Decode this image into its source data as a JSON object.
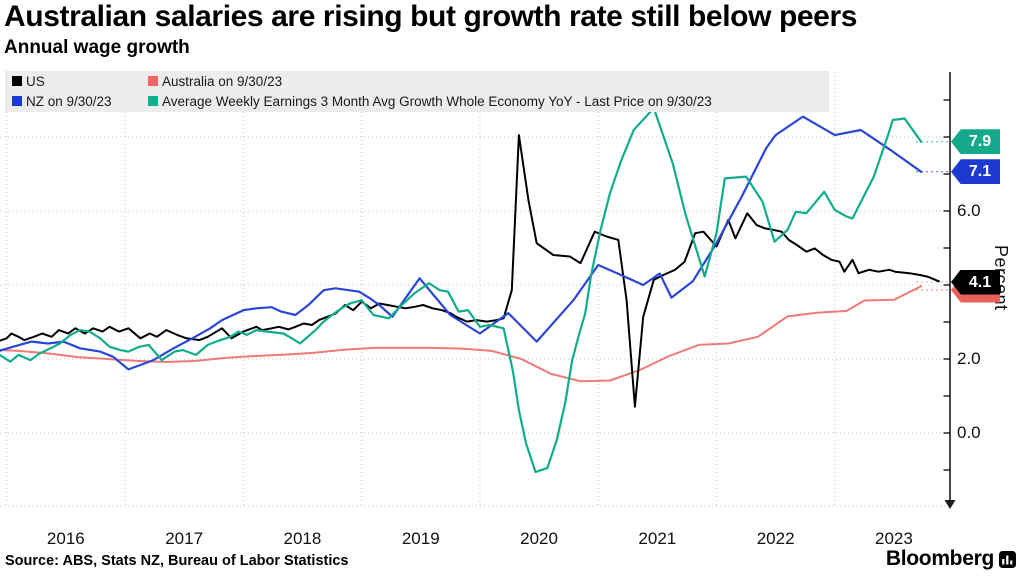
{
  "header": {
    "title": "Australian salaries are rising but growth rate still below peers",
    "subtitle": "Annual wage growth"
  },
  "legend": {
    "items": [
      {
        "label": "US",
        "color": "#000000"
      },
      {
        "label": "Australia on 9/30/23",
        "color": "#ee6562"
      },
      {
        "label": "NZ on 9/30/23",
        "color": "#1c3ad2"
      },
      {
        "label": "Average Weekly Earnings 3 Month Avg Growth Whole Economy YoY - Last Price on 9/30/23",
        "color": "#0cb08a"
      }
    ]
  },
  "chart_data": {
    "type": "line",
    "title": "Annual wage growth",
    "ylabel": "Percent",
    "ylim": [
      -1.97,
      9.76
    ],
    "xlim": [
      2015.94,
      2023.98
    ],
    "grid": "dotted",
    "legend_position": "top-left",
    "y_major_gridlines": [
      0,
      2,
      4,
      6,
      8
    ],
    "y_axis_labels": [
      {
        "v": 0,
        "label": "0.0"
      },
      {
        "v": 2,
        "label": "2.0"
      },
      {
        "v": 6,
        "label": "6.0"
      }
    ],
    "y_minor_ticks": [
      -1,
      0,
      1,
      2,
      3,
      4,
      5,
      6,
      7,
      8,
      9
    ],
    "x_ticks": [
      {
        "year": 2016,
        "label": "2016"
      },
      {
        "year": 2017,
        "label": "2017"
      },
      {
        "year": 2018,
        "label": "2018"
      },
      {
        "year": 2019,
        "label": "2019"
      },
      {
        "year": 2020,
        "label": "2020"
      },
      {
        "year": 2021,
        "label": "2021"
      },
      {
        "year": 2022,
        "label": "2022"
      },
      {
        "year": 2023,
        "label": "2023"
      }
    ],
    "last_price_labels": [
      {
        "label": "7.9",
        "v": 7.87,
        "color": "#14a98a",
        "offset": 0
      },
      {
        "label": "7.1",
        "v": 7.06,
        "color": "#1c3ad2",
        "offset": 0
      },
      {
        "label": "",
        "v": 4.08,
        "color": "#e8625a",
        "offset": 8
      },
      {
        "label": "4.1",
        "v": 4.08,
        "color": "#000000",
        "offset": 0
      }
    ],
    "series": [
      {
        "name": "Australia on 9/30/23",
        "color": "#ef7b79",
        "width": 2,
        "points": [
          [
            2015.92,
            2.25
          ],
          [
            2016.1,
            2.22
          ],
          [
            2016.35,
            2.15
          ],
          [
            2016.6,
            2.05
          ],
          [
            2016.85,
            2.0
          ],
          [
            2017.1,
            1.95
          ],
          [
            2017.35,
            1.92
          ],
          [
            2017.6,
            1.95
          ],
          [
            2017.85,
            2.03
          ],
          [
            2018.1,
            2.08
          ],
          [
            2018.35,
            2.12
          ],
          [
            2018.6,
            2.17
          ],
          [
            2018.85,
            2.25
          ],
          [
            2019.1,
            2.3
          ],
          [
            2019.35,
            2.3
          ],
          [
            2019.6,
            2.3
          ],
          [
            2019.85,
            2.28
          ],
          [
            2020.1,
            2.22
          ],
          [
            2020.35,
            2.0
          ],
          [
            2020.6,
            1.6
          ],
          [
            2020.85,
            1.4
          ],
          [
            2021.1,
            1.42
          ],
          [
            2021.35,
            1.7
          ],
          [
            2021.6,
            2.08
          ],
          [
            2021.85,
            2.38
          ],
          [
            2022.1,
            2.42
          ],
          [
            2022.35,
            2.6
          ],
          [
            2022.6,
            3.15
          ],
          [
            2022.85,
            3.25
          ],
          [
            2023.1,
            3.3
          ],
          [
            2023.25,
            3.58
          ],
          [
            2023.5,
            3.6
          ],
          [
            2023.73,
            3.97
          ]
        ]
      },
      {
        "name": "US",
        "color": "#000000",
        "width": 2,
        "points": [
          [
            2015.92,
            2.47
          ],
          [
            2016.0,
            2.56
          ],
          [
            2016.04,
            2.69
          ],
          [
            2016.1,
            2.6
          ],
          [
            2016.15,
            2.51
          ],
          [
            2016.23,
            2.6
          ],
          [
            2016.3,
            2.69
          ],
          [
            2016.38,
            2.6
          ],
          [
            2016.44,
            2.78
          ],
          [
            2016.52,
            2.69
          ],
          [
            2016.58,
            2.83
          ],
          [
            2016.66,
            2.69
          ],
          [
            2016.73,
            2.83
          ],
          [
            2016.81,
            2.74
          ],
          [
            2016.87,
            2.87
          ],
          [
            2016.95,
            2.74
          ],
          [
            2017.03,
            2.83
          ],
          [
            2017.13,
            2.56
          ],
          [
            2017.21,
            2.69
          ],
          [
            2017.27,
            2.6
          ],
          [
            2017.35,
            2.78
          ],
          [
            2017.44,
            2.65
          ],
          [
            2017.52,
            2.56
          ],
          [
            2017.63,
            2.51
          ],
          [
            2017.7,
            2.6
          ],
          [
            2017.82,
            2.83
          ],
          [
            2017.9,
            2.56
          ],
          [
            2018.0,
            2.74
          ],
          [
            2018.11,
            2.87
          ],
          [
            2018.16,
            2.78
          ],
          [
            2018.24,
            2.83
          ],
          [
            2018.3,
            2.87
          ],
          [
            2018.38,
            2.8
          ],
          [
            2018.44,
            2.87
          ],
          [
            2018.51,
            2.96
          ],
          [
            2018.58,
            2.92
          ],
          [
            2018.64,
            3.05
          ],
          [
            2018.71,
            3.14
          ],
          [
            2018.78,
            3.23
          ],
          [
            2018.86,
            3.46
          ],
          [
            2018.93,
            3.32
          ],
          [
            2019.0,
            3.55
          ],
          [
            2019.08,
            3.37
          ],
          [
            2019.15,
            3.5
          ],
          [
            2019.22,
            3.46
          ],
          [
            2019.3,
            3.41
          ],
          [
            2019.37,
            3.37
          ],
          [
            2019.45,
            3.41
          ],
          [
            2019.52,
            3.46
          ],
          [
            2019.6,
            3.37
          ],
          [
            2019.68,
            3.32
          ],
          [
            2019.75,
            3.24
          ],
          [
            2019.8,
            3.14
          ],
          [
            2019.89,
            3.01
          ],
          [
            2019.97,
            3.05
          ],
          [
            2020.06,
            3.01
          ],
          [
            2020.14,
            3.05
          ],
          [
            2020.2,
            3.1
          ],
          [
            2020.27,
            3.86
          ],
          [
            2020.33,
            8.05
          ],
          [
            2020.41,
            6.3
          ],
          [
            2020.48,
            5.13
          ],
          [
            2020.62,
            4.81
          ],
          [
            2020.76,
            4.77
          ],
          [
            2020.85,
            4.59
          ],
          [
            2020.97,
            5.44
          ],
          [
            2021.07,
            5.31
          ],
          [
            2021.17,
            5.22
          ],
          [
            2021.24,
            3.59
          ],
          [
            2021.31,
            0.71
          ],
          [
            2021.38,
            3.14
          ],
          [
            2021.47,
            4.14
          ],
          [
            2021.55,
            4.27
          ],
          [
            2021.65,
            4.41
          ],
          [
            2021.73,
            4.63
          ],
          [
            2021.82,
            5.4
          ],
          [
            2021.89,
            5.44
          ],
          [
            2022.0,
            5.04
          ],
          [
            2022.1,
            5.76
          ],
          [
            2022.16,
            5.26
          ],
          [
            2022.26,
            5.94
          ],
          [
            2022.34,
            5.62
          ],
          [
            2022.41,
            5.53
          ],
          [
            2022.48,
            5.49
          ],
          [
            2022.55,
            5.44
          ],
          [
            2022.61,
            5.22
          ],
          [
            2022.68,
            5.08
          ],
          [
            2022.76,
            4.9
          ],
          [
            2022.83,
            4.99
          ],
          [
            2022.9,
            4.81
          ],
          [
            2022.97,
            4.68
          ],
          [
            2023.04,
            4.63
          ],
          [
            2023.08,
            4.36
          ],
          [
            2023.15,
            4.68
          ],
          [
            2023.2,
            4.32
          ],
          [
            2023.29,
            4.41
          ],
          [
            2023.37,
            4.36
          ],
          [
            2023.46,
            4.41
          ],
          [
            2023.51,
            4.36
          ],
          [
            2023.63,
            4.32
          ],
          [
            2023.72,
            4.27
          ],
          [
            2023.79,
            4.22
          ],
          [
            2023.88,
            4.1
          ]
        ]
      },
      {
        "name": "NZ on 9/30/23",
        "color": "#2946d6",
        "width": 2.2,
        "points": [
          [
            2015.92,
            2.2
          ],
          [
            2016.0,
            2.28
          ],
          [
            2016.21,
            2.47
          ],
          [
            2016.35,
            2.42
          ],
          [
            2016.48,
            2.47
          ],
          [
            2016.62,
            2.29
          ],
          [
            2016.79,
            2.2
          ],
          [
            2016.9,
            2.06
          ],
          [
            2017.03,
            1.72
          ],
          [
            2017.24,
            1.97
          ],
          [
            2017.41,
            2.29
          ],
          [
            2017.57,
            2.56
          ],
          [
            2017.72,
            2.83
          ],
          [
            2017.82,
            3.05
          ],
          [
            2018.0,
            3.32
          ],
          [
            2018.11,
            3.37
          ],
          [
            2018.24,
            3.4
          ],
          [
            2018.32,
            3.28
          ],
          [
            2018.44,
            3.19
          ],
          [
            2018.55,
            3.46
          ],
          [
            2018.68,
            3.86
          ],
          [
            2018.78,
            3.91
          ],
          [
            2018.98,
            3.82
          ],
          [
            2019.07,
            3.64
          ],
          [
            2019.15,
            3.46
          ],
          [
            2019.26,
            3.14
          ],
          [
            2019.49,
            4.18
          ],
          [
            2019.75,
            3.19
          ],
          [
            2020.0,
            2.69
          ],
          [
            2020.24,
            3.24
          ],
          [
            2020.48,
            2.47
          ],
          [
            2020.79,
            3.59
          ],
          [
            2020.93,
            4.22
          ],
          [
            2021.0,
            4.54
          ],
          [
            2021.16,
            4.32
          ],
          [
            2021.38,
            4.0
          ],
          [
            2021.52,
            4.31
          ],
          [
            2021.62,
            3.66
          ],
          [
            2021.8,
            4.1
          ],
          [
            2022.0,
            5.13
          ],
          [
            2022.22,
            6.43
          ],
          [
            2022.42,
            7.7
          ],
          [
            2022.5,
            8.05
          ],
          [
            2022.73,
            8.55
          ],
          [
            2023.0,
            8.05
          ],
          [
            2023.22,
            8.19
          ],
          [
            2023.47,
            7.65
          ],
          [
            2023.73,
            7.06
          ]
        ]
      },
      {
        "name": "Average Weekly Earnings 3 Month Avg Growth Whole Economy YoY",
        "color": "#10ad8c",
        "width": 2.2,
        "points": [
          [
            2015.92,
            2.15
          ],
          [
            2016.03,
            1.93
          ],
          [
            2016.1,
            2.11
          ],
          [
            2016.2,
            1.97
          ],
          [
            2016.28,
            2.15
          ],
          [
            2016.37,
            2.29
          ],
          [
            2016.45,
            2.42
          ],
          [
            2016.54,
            2.65
          ],
          [
            2016.62,
            2.78
          ],
          [
            2016.7,
            2.74
          ],
          [
            2016.79,
            2.56
          ],
          [
            2016.87,
            2.33
          ],
          [
            2016.96,
            2.24
          ],
          [
            2017.03,
            2.2
          ],
          [
            2017.12,
            2.33
          ],
          [
            2017.2,
            2.38
          ],
          [
            2017.31,
            1.97
          ],
          [
            2017.42,
            2.2
          ],
          [
            2017.49,
            2.24
          ],
          [
            2017.6,
            2.11
          ],
          [
            2017.7,
            2.38
          ],
          [
            2017.77,
            2.47
          ],
          [
            2017.89,
            2.6
          ],
          [
            2017.96,
            2.74
          ],
          [
            2018.03,
            2.65
          ],
          [
            2018.11,
            2.78
          ],
          [
            2018.2,
            2.74
          ],
          [
            2018.34,
            2.69
          ],
          [
            2018.41,
            2.56
          ],
          [
            2018.48,
            2.42
          ],
          [
            2018.61,
            2.78
          ],
          [
            2018.68,
            3.01
          ],
          [
            2018.75,
            3.19
          ],
          [
            2018.83,
            3.37
          ],
          [
            2018.9,
            3.5
          ],
          [
            2019.0,
            3.59
          ],
          [
            2019.1,
            3.19
          ],
          [
            2019.23,
            3.1
          ],
          [
            2019.34,
            3.46
          ],
          [
            2019.45,
            3.78
          ],
          [
            2019.57,
            4.05
          ],
          [
            2019.66,
            3.86
          ],
          [
            2019.73,
            3.82
          ],
          [
            2019.82,
            3.28
          ],
          [
            2019.9,
            3.32
          ],
          [
            2020.0,
            2.87
          ],
          [
            2020.08,
            2.92
          ],
          [
            2020.2,
            2.83
          ],
          [
            2020.28,
            1.66
          ],
          [
            2020.33,
            0.62
          ],
          [
            2020.39,
            -0.28
          ],
          [
            2020.47,
            -1.05
          ],
          [
            2020.57,
            -0.95
          ],
          [
            2020.65,
            -0.19
          ],
          [
            2020.72,
            0.8
          ],
          [
            2020.78,
            1.97
          ],
          [
            2020.84,
            2.69
          ],
          [
            2020.89,
            3.23
          ],
          [
            2020.94,
            4.27
          ],
          [
            2021.02,
            5.49
          ],
          [
            2021.1,
            6.48
          ],
          [
            2021.19,
            7.33
          ],
          [
            2021.3,
            8.19
          ],
          [
            2021.47,
            8.78
          ],
          [
            2021.63,
            7.29
          ],
          [
            2021.74,
            5.89
          ],
          [
            2021.9,
            4.23
          ],
          [
            2022.0,
            5.4
          ],
          [
            2022.07,
            6.88
          ],
          [
            2022.25,
            6.93
          ],
          [
            2022.39,
            6.25
          ],
          [
            2022.49,
            5.17
          ],
          [
            2022.6,
            5.49
          ],
          [
            2022.67,
            5.98
          ],
          [
            2022.76,
            5.94
          ],
          [
            2022.91,
            6.52
          ],
          [
            2023.0,
            6.03
          ],
          [
            2023.1,
            5.85
          ],
          [
            2023.15,
            5.8
          ],
          [
            2023.33,
            6.93
          ],
          [
            2023.45,
            8.05
          ],
          [
            2023.49,
            8.46
          ],
          [
            2023.59,
            8.5
          ],
          [
            2023.73,
            7.87
          ]
        ]
      }
    ]
  },
  "footer": {
    "source": "Source: ABS, Stats NZ, Bureau of Labor Statistics",
    "brand": "Bloomberg"
  }
}
